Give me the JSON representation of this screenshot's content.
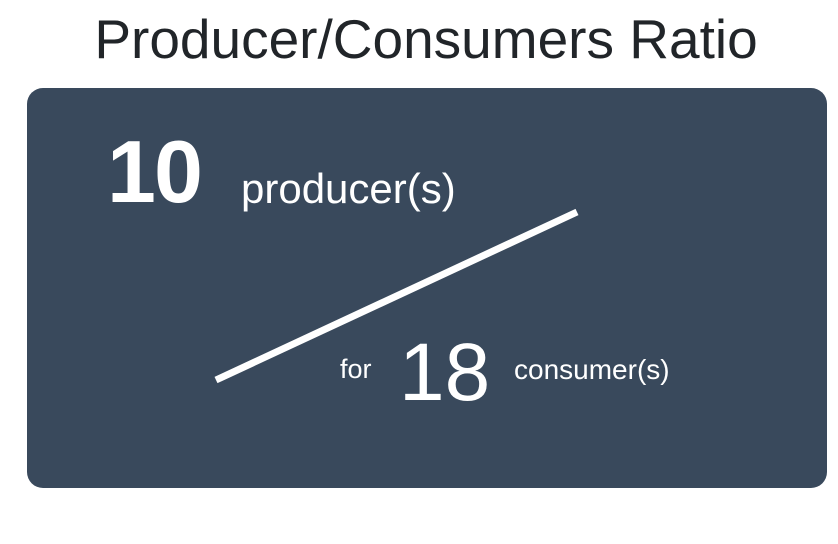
{
  "header": {
    "title": "Producer/Consumers Ratio"
  },
  "ratio_card": {
    "producer_count": "10",
    "producer_label": "producer(s)",
    "for_label": "for",
    "consumer_count": "18",
    "consumer_label": "consumer(s)",
    "background_color": "#39495c",
    "text_color": "#ffffff"
  }
}
